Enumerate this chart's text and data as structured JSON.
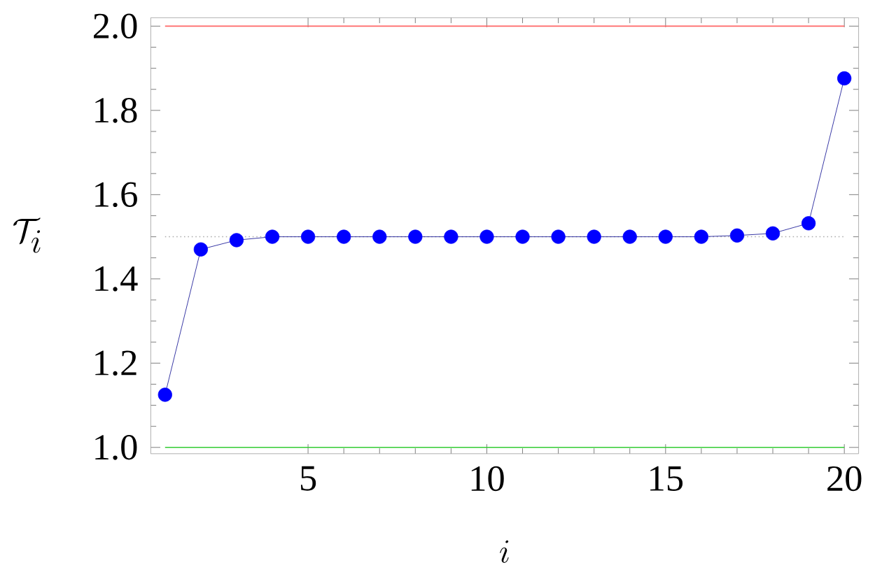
{
  "chart_data": {
    "type": "line",
    "xlabel": "i",
    "ylabel": "\\mathcal{T}_i",
    "x": [
      1,
      2,
      3,
      4,
      5,
      6,
      7,
      8,
      9,
      10,
      11,
      12,
      13,
      14,
      15,
      16,
      17,
      18,
      19,
      20
    ],
    "series": [
      {
        "color": "#0000ff",
        "values": [
          1.125,
          1.47,
          1.492,
          1.5,
          1.5,
          1.5,
          1.5,
          1.5,
          1.5,
          1.5,
          1.5,
          1.5,
          1.5,
          1.5,
          1.5,
          1.5,
          1.503,
          1.508,
          1.532,
          1.876
        ]
      }
    ],
    "marker": "circle",
    "line_style": "solid",
    "xlim": [
      0.6,
      20.4
    ],
    "ylim": [
      0.985,
      2.02
    ],
    "xticks": [
      5,
      10,
      15,
      20
    ],
    "yticks": [
      {
        "value": 1,
        "label": "1.0"
      },
      1.2,
      1.4,
      1.6,
      1.8,
      {
        "value": 2,
        "label": "2.0"
      }
    ],
    "ref_lines": [
      {
        "axis": "y",
        "value": 2.0,
        "color": "#ff6666",
        "line_style": "solid"
      },
      {
        "axis": "y",
        "value": 1.0,
        "color": "#33cc33",
        "line_style": "solid"
      },
      {
        "axis": "y",
        "value": 1.5,
        "color": "#aaaaaa",
        "line_style": "dotted"
      }
    ]
  }
}
